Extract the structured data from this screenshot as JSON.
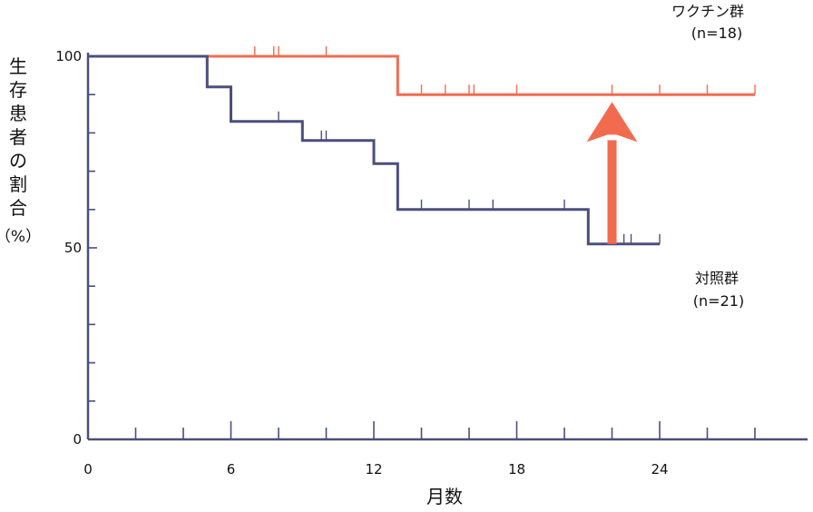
{
  "chart_data": {
    "type": "line",
    "subtype": "step (Kaplan-Meier survival curve)",
    "xlabel": "月数",
    "ylabel": "生存患者の割合（%）",
    "ylabel_lines": [
      "生",
      "存",
      "患",
      "者",
      "の",
      "割",
      "合",
      "（%）"
    ],
    "x_ticks": [
      0,
      6,
      12,
      18,
      24
    ],
    "y_ticks": [
      0,
      50,
      100
    ],
    "xlim": [
      0,
      30
    ],
    "ylim": [
      0,
      100
    ],
    "grid": false,
    "colors": {
      "vaccine": "#f26b4f",
      "control": "#4a4f7c",
      "arrow": "#f26b4f",
      "axis": "#4a4f7c"
    },
    "series": [
      {
        "name": "ワクチン群",
        "n_label": "(n=18)",
        "color": "#f26b4f",
        "steps": [
          [
            0,
            100
          ],
          [
            5,
            100
          ],
          [
            13,
            100
          ],
          [
            13,
            90
          ],
          [
            28,
            90
          ]
        ],
        "censored": [
          7,
          7.8,
          8,
          10,
          14,
          15,
          16,
          16.2,
          18,
          22,
          24,
          26,
          28
        ]
      },
      {
        "name": "対照群",
        "n_label": "(n=21)",
        "color": "#4a4f7c",
        "steps": [
          [
            0,
            100
          ],
          [
            5,
            100
          ],
          [
            5,
            92
          ],
          [
            6,
            92
          ],
          [
            6,
            83
          ],
          [
            9,
            83
          ],
          [
            9,
            78
          ],
          [
            12,
            78
          ],
          [
            12,
            72
          ],
          [
            13,
            72
          ],
          [
            13,
            60
          ],
          [
            21,
            60
          ],
          [
            21,
            51
          ],
          [
            24,
            51
          ]
        ],
        "censored": [
          8,
          9.8,
          10,
          14,
          16,
          17,
          20,
          22.5,
          22.8,
          24
        ]
      }
    ],
    "annotations": [
      {
        "type": "arrow",
        "x": 22,
        "from_y": 51,
        "to_y": 89,
        "meaning": "improvement"
      }
    ]
  },
  "labels": {
    "vaccine_name": "ワクチン群",
    "vaccine_n": "(n=18)",
    "control_name": "対照群",
    "control_n": "(n=21)"
  }
}
